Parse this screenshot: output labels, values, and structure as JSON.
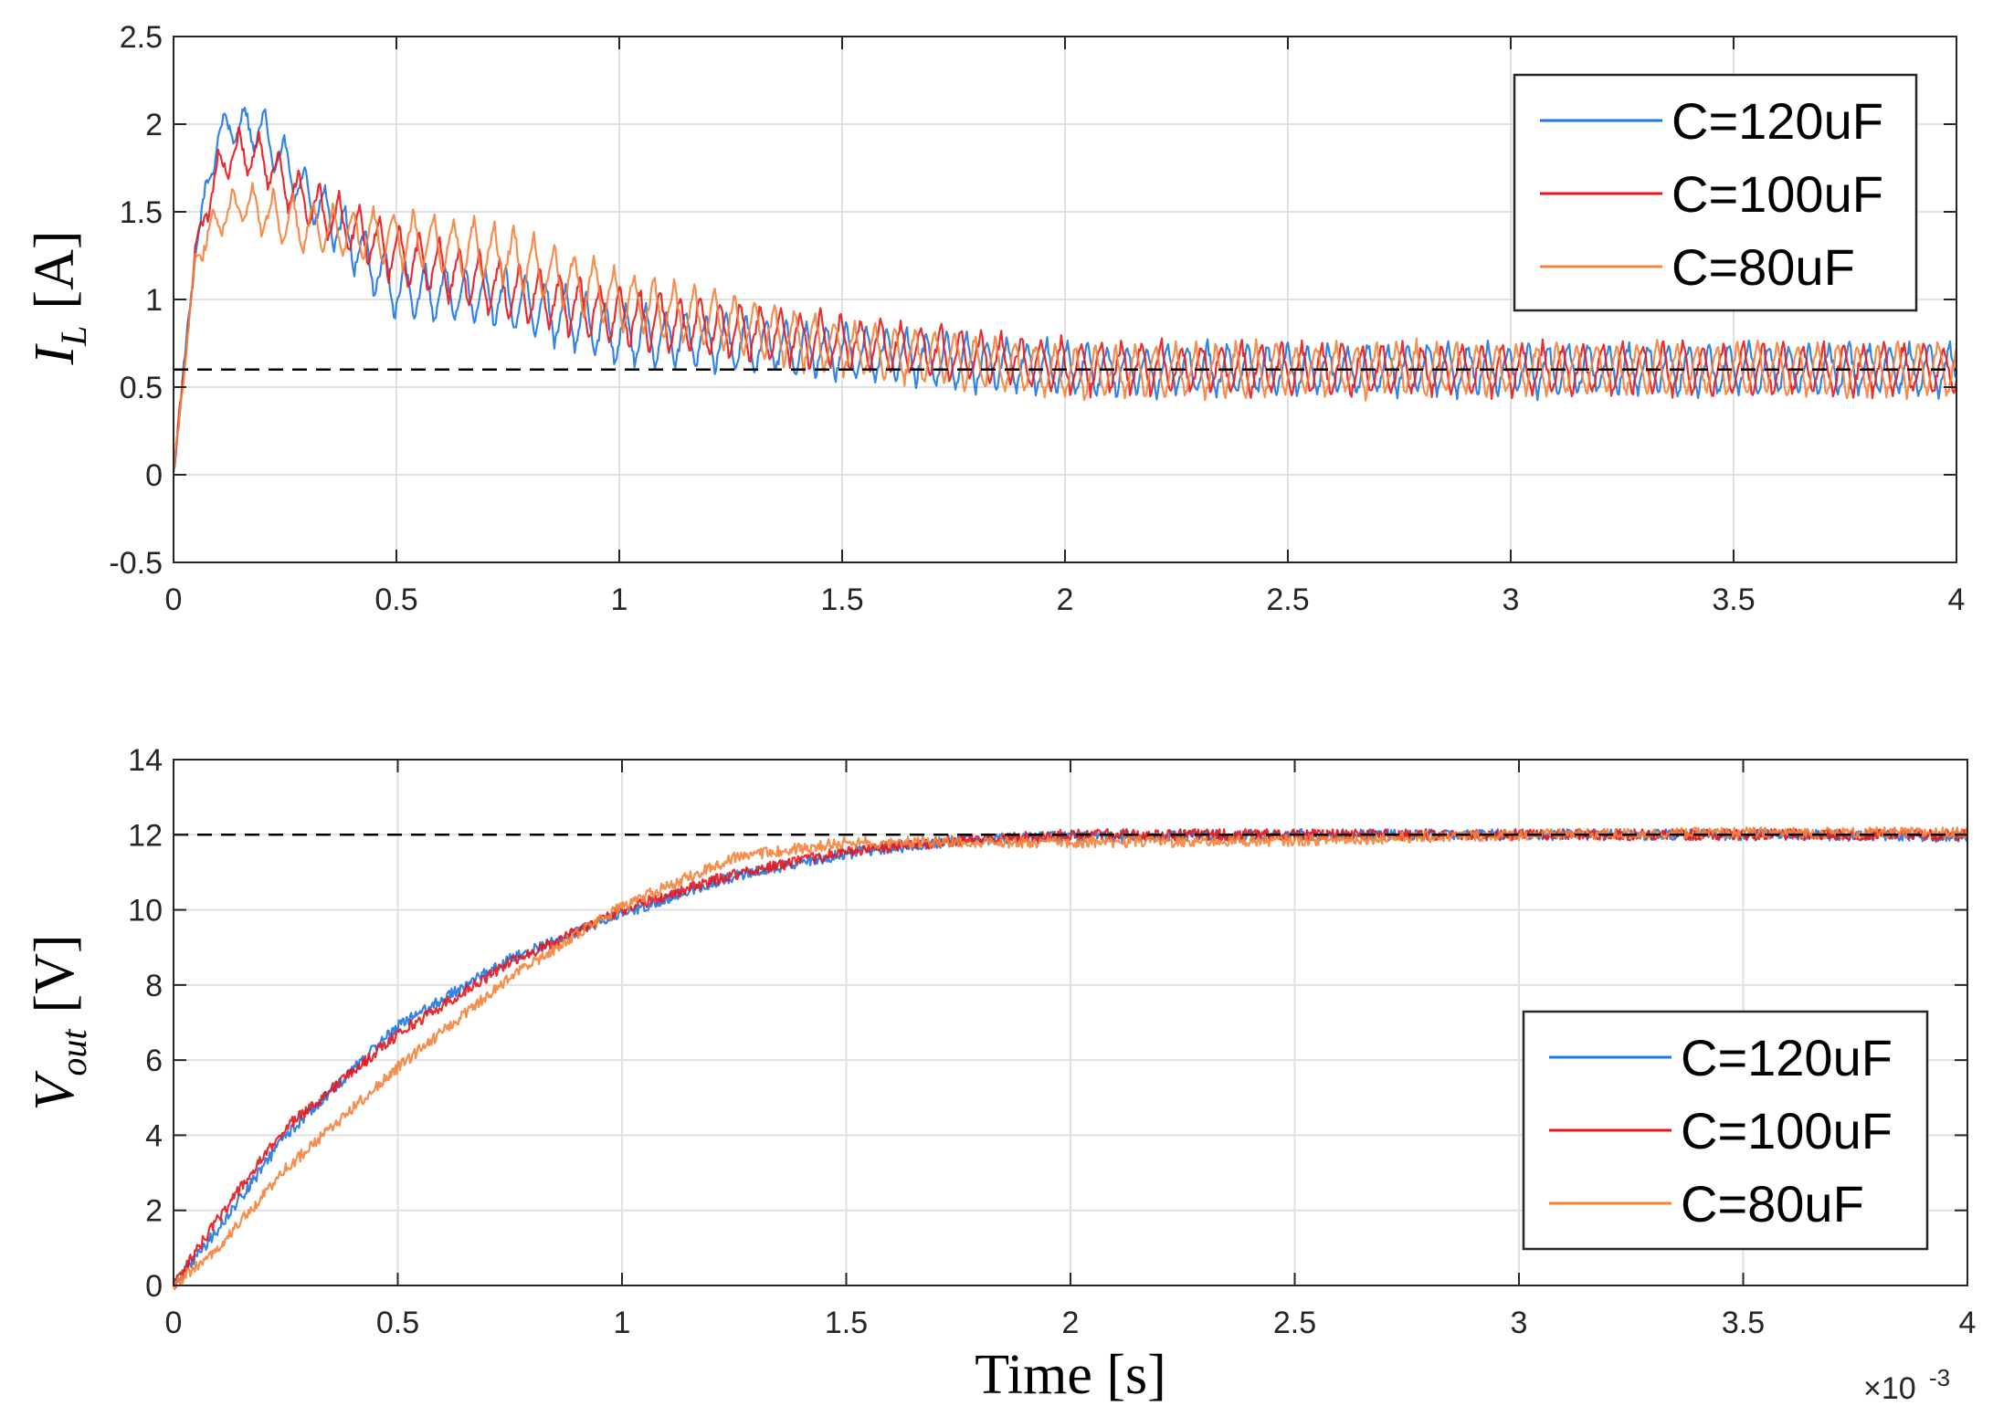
{
  "figure": {
    "exponent_label": "×10",
    "exponent_power": "-3"
  },
  "chart_data": [
    {
      "type": "line",
      "panel": "top",
      "ylabel_main": "I",
      "ylabel_sub": "L",
      "ylabel_unit": "[A]",
      "xlabel": "",
      "xlim": [
        0,
        4
      ],
      "ylim": [
        -0.5,
        2.5
      ],
      "x_ticks": [
        "0",
        "0.5",
        "1",
        "1.5",
        "2",
        "2.5",
        "3",
        "3.5",
        "4"
      ],
      "y_ticks": [
        "-0.5",
        "0",
        "0.5",
        "1",
        "1.5",
        "2",
        "2.5"
      ],
      "x_tick_values": [
        0,
        0.5,
        1,
        1.5,
        2,
        2.5,
        3,
        3.5,
        4
      ],
      "y_tick_values": [
        -0.5,
        0,
        0.5,
        1,
        1.5,
        2,
        2.5
      ],
      "grid": true,
      "reference_line": {
        "y": 0.6,
        "style": "dashed",
        "color": "#000000"
      },
      "legend_position": "top-right",
      "series": [
        {
          "name": "C=120uF",
          "color": "#1f77e0",
          "x": [
            0,
            0.05,
            0.1,
            0.15,
            0.2,
            0.3,
            0.5,
            0.75,
            1,
            1.5,
            2,
            2.5,
            3,
            3.5,
            4
          ],
          "values": [
            0,
            1.3,
            1.95,
            2.0,
            1.95,
            1.6,
            1.05,
            1.0,
            0.8,
            0.7,
            0.6,
            0.6,
            0.6,
            0.6,
            0.6
          ],
          "ripple": [
            0,
            0.06,
            0.1,
            0.12,
            0.14,
            0.15,
            0.17,
            0.18,
            0.18,
            0.16,
            0.15,
            0.15,
            0.15,
            0.15,
            0.15
          ]
        },
        {
          "name": "C=100uF",
          "color": "#e8161b",
          "x": [
            0,
            0.05,
            0.1,
            0.15,
            0.2,
            0.3,
            0.5,
            0.75,
            1,
            1.5,
            2,
            2.5,
            3,
            3.5,
            4
          ],
          "values": [
            0,
            1.3,
            1.75,
            1.85,
            1.8,
            1.55,
            1.25,
            1.05,
            0.9,
            0.75,
            0.62,
            0.6,
            0.6,
            0.6,
            0.6
          ],
          "ripple": [
            0,
            0.06,
            0.1,
            0.12,
            0.14,
            0.15,
            0.17,
            0.18,
            0.18,
            0.16,
            0.15,
            0.15,
            0.15,
            0.15,
            0.15
          ]
        },
        {
          "name": "C=80uF",
          "color": "#f5823a",
          "x": [
            0,
            0.05,
            0.1,
            0.15,
            0.2,
            0.3,
            0.5,
            0.75,
            1,
            1.5,
            2,
            2.5,
            3,
            3.5,
            4
          ],
          "values": [
            0,
            1.25,
            1.45,
            1.55,
            1.5,
            1.4,
            1.35,
            1.25,
            1.0,
            0.72,
            0.58,
            0.6,
            0.6,
            0.6,
            0.6
          ],
          "ripple": [
            0,
            0.06,
            0.1,
            0.12,
            0.14,
            0.15,
            0.17,
            0.18,
            0.18,
            0.16,
            0.15,
            0.15,
            0.15,
            0.15,
            0.15
          ]
        }
      ]
    },
    {
      "type": "line",
      "panel": "bottom",
      "ylabel_main": "V",
      "ylabel_sub": "out",
      "ylabel_unit": "[V]",
      "xlabel": "Time  [s]",
      "xlim": [
        0,
        4
      ],
      "ylim": [
        0,
        14
      ],
      "x_ticks": [
        "0",
        "0.5",
        "1",
        "1.5",
        "2",
        "2.5",
        "3",
        "3.5",
        "4"
      ],
      "y_ticks": [
        "0",
        "2",
        "4",
        "6",
        "8",
        "10",
        "12",
        "14"
      ],
      "x_tick_values": [
        0,
        0.5,
        1,
        1.5,
        2,
        2.5,
        3,
        3.5,
        4
      ],
      "y_tick_values": [
        0,
        2,
        4,
        6,
        8,
        10,
        12,
        14
      ],
      "grid": true,
      "reference_line": {
        "y": 12,
        "style": "dashed",
        "color": "#000000"
      },
      "legend_position": "bottom-right",
      "series": [
        {
          "name": "C=120uF",
          "color": "#1f77e0",
          "x": [
            0,
            0.1,
            0.25,
            0.5,
            0.75,
            1,
            1.25,
            1.5,
            1.75,
            2,
            2.5,
            3,
            3.5,
            4
          ],
          "values": [
            0,
            1.5,
            4.0,
            6.9,
            8.7,
            9.9,
            10.9,
            11.5,
            11.85,
            11.95,
            12.0,
            12.0,
            12.0,
            11.95
          ],
          "ripple": [
            0.15,
            0.15,
            0.15,
            0.15,
            0.15,
            0.15,
            0.15,
            0.15,
            0.15,
            0.15,
            0.15,
            0.15,
            0.15,
            0.15
          ]
        },
        {
          "name": "C=100uF",
          "color": "#e8161b",
          "x": [
            0,
            0.1,
            0.25,
            0.5,
            0.75,
            1,
            1.25,
            1.5,
            1.75,
            2,
            2.5,
            3,
            3.5,
            4
          ],
          "values": [
            0,
            1.8,
            4.2,
            6.7,
            8.6,
            10.0,
            10.95,
            11.55,
            11.85,
            12.0,
            12.0,
            12.0,
            12.0,
            12.0
          ],
          "ripple": [
            0.15,
            0.15,
            0.15,
            0.15,
            0.15,
            0.15,
            0.15,
            0.15,
            0.15,
            0.15,
            0.15,
            0.15,
            0.15,
            0.15
          ]
        },
        {
          "name": "C=80uF",
          "color": "#f5823a",
          "x": [
            0,
            0.1,
            0.25,
            0.5,
            0.75,
            1,
            1.25,
            1.5,
            1.75,
            2,
            2.5,
            3,
            3.5,
            4
          ],
          "values": [
            0,
            1.0,
            3.1,
            5.8,
            8.2,
            10.1,
            11.4,
            11.8,
            11.8,
            11.8,
            11.85,
            12.0,
            12.05,
            12.05
          ],
          "ripple": [
            0.15,
            0.15,
            0.15,
            0.15,
            0.15,
            0.15,
            0.15,
            0.15,
            0.15,
            0.15,
            0.15,
            0.15,
            0.15,
            0.15
          ]
        }
      ]
    }
  ]
}
